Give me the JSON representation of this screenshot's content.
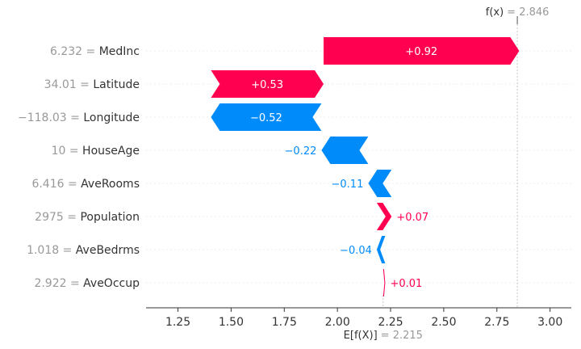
{
  "chart_data": {
    "type": "waterfall",
    "base_value": 2.215,
    "final_value": 2.846,
    "top_label": {
      "name": "f(x)",
      "value_text": "2.846"
    },
    "bottom_label": {
      "name": "E[f(X)]",
      "value_text": "2.215"
    },
    "features": [
      {
        "value_text": "6.232",
        "name": "MedInc",
        "contribution": 0.92,
        "label": "+0.92"
      },
      {
        "value_text": "34.01",
        "name": "Latitude",
        "contribution": 0.53,
        "label": "+0.53"
      },
      {
        "value_text": "−118.03",
        "name": "Longitude",
        "contribution": -0.52,
        "label": "−0.52"
      },
      {
        "value_text": "10",
        "name": "HouseAge",
        "contribution": -0.22,
        "label": "−0.22"
      },
      {
        "value_text": "6.416",
        "name": "AveRooms",
        "contribution": -0.11,
        "label": "−0.11"
      },
      {
        "value_text": "2975",
        "name": "Population",
        "contribution": 0.07,
        "label": "+0.07"
      },
      {
        "value_text": "1.018",
        "name": "AveBedrms",
        "contribution": -0.04,
        "label": "−0.04"
      },
      {
        "value_text": "2.922",
        "name": "AveOccup",
        "contribution": 0.01,
        "label": "+0.01"
      }
    ],
    "x_ticks": [
      1.25,
      1.5,
      1.75,
      2.0,
      2.25,
      2.5,
      2.75,
      3.0
    ],
    "x_tick_labels": [
      "1.25",
      "1.50",
      "1.75",
      "2.00",
      "2.25",
      "2.50",
      "2.75",
      "3.00"
    ],
    "xlim": [
      1.1,
      3.1
    ],
    "grid": false,
    "colors": {
      "positive": "#ff0051",
      "negative": "#008bfb",
      "axis": "#333333",
      "reference_line": "#bbbbbb"
    }
  }
}
